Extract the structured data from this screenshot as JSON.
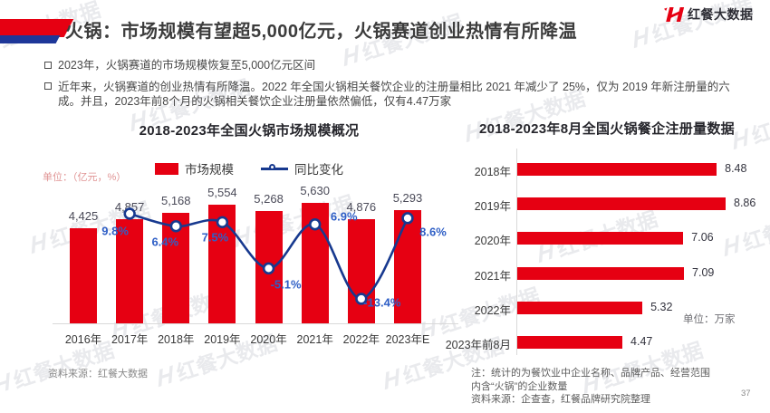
{
  "branding": {
    "logo_text": "红餐大数据",
    "watermark_text": "红餐大数据",
    "brand_red": "#e60012",
    "accent_blue": "#1e3799"
  },
  "header": {
    "title": "火锅：市场规模有望超5,000亿元，火锅赛道创业热情有所降温"
  },
  "bullets": [
    "2023年，火锅赛道的市场规模恢复至5,000亿元区间",
    "近年来，火锅赛道的创业热情有所降温。2022 年全国火锅相关餐饮企业的注册量相比 2021 年减少了 25%，仅为 2019 年新注册量的六成。并且，2023年前8个月的火锅相关餐饮企业注册量依然偏低，仅有4.47万家"
  ],
  "chart_data": [
    {
      "id": "market-scale",
      "type": "bar",
      "title": "2018-2023年全国火锅市场规模概况",
      "unit_label": "单位：（亿元，%）",
      "legend": [
        {
          "name": "市场规模",
          "type": "bar",
          "color": "#e60012"
        },
        {
          "name": "同比变化",
          "type": "line",
          "color": "#17398f"
        }
      ],
      "categories": [
        "2016年",
        "2017年",
        "2018年",
        "2019年",
        "2020年",
        "2021年",
        "2022年",
        "2023年E"
      ],
      "series": [
        {
          "name": "市场规模",
          "type": "bar",
          "values": [
            4425,
            4857,
            5168,
            5554,
            5268,
            5630,
            4876,
            5293
          ],
          "labels": [
            "4,425",
            "4,857",
            "5,168",
            "5,554",
            "5,268",
            "5,630",
            "4,876",
            "5,293"
          ]
        },
        {
          "name": "同比变化",
          "type": "line",
          "values": [
            null,
            9.8,
            6.4,
            7.5,
            -5.1,
            6.9,
            -13.4,
            8.6
          ],
          "labels": [
            null,
            "9.8%",
            "6.4%",
            "7.5%",
            "-5.1%",
            "6.9%",
            "-13.4%",
            "8.6%"
          ]
        }
      ],
      "ylabel": "亿元",
      "grid": false,
      "legend_position": "top",
      "source": "资料来源：红餐大数据"
    },
    {
      "id": "registrations",
      "type": "bar",
      "orientation": "horizontal",
      "title": "2018-2023年8月全国火锅餐企注册量数据",
      "unit_label": "单位：万家",
      "categories": [
        "2018年",
        "2019年",
        "2020年",
        "2021年",
        "2022年",
        "2023年前8月"
      ],
      "values": [
        8.48,
        8.86,
        7.06,
        7.09,
        5.32,
        4.47
      ],
      "labels": [
        "8.48",
        "8.86",
        "7.06",
        "7.09",
        "5.32",
        "4.47"
      ],
      "xlim": [
        0,
        9
      ],
      "grid": false,
      "notes": [
        "注：统计的为餐饮业中企业名称、品牌产品、经营范围",
        "内含“火锅”的企业数量",
        "资料来源：企查查，红餐品牌研究院整理"
      ]
    }
  ],
  "footer": {
    "page_number": "37"
  }
}
